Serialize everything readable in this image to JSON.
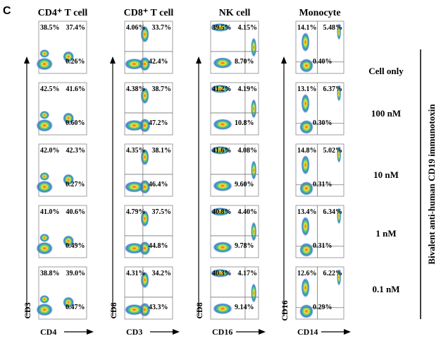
{
  "panel_label": "C",
  "side_label": "Bivalent anti-human CD19 immunotoxin",
  "conditions": [
    "Cell only",
    "100 nM",
    "10 nM",
    "1 nM",
    "0.1 nM"
  ],
  "columns": [
    {
      "title": "CD4⁺ T cell",
      "x_label": "CD4",
      "y_label": "CD3",
      "rows": [
        {
          "upper_left": "38.5%",
          "upper_right": "37.4%",
          "lower_right": "0.26%"
        },
        {
          "upper_left": "42.5%",
          "upper_right": "41.6%",
          "lower_right": "0.60%"
        },
        {
          "upper_left": "42.0%",
          "upper_right": "42.3%",
          "lower_right": "0.27%"
        },
        {
          "upper_left": "41.0%",
          "upper_right": "40.6%",
          "lower_right": "0.49%"
        },
        {
          "upper_left": "38.8%",
          "upper_right": "39.0%",
          "lower_right": "0.47%"
        }
      ]
    },
    {
      "title": "CD8⁺ T cell",
      "x_label": "CD3",
      "y_label": "CD8",
      "rows": [
        {
          "upper_left": "4.06%",
          "upper_right": "33.7%",
          "lower_right": "42.4%"
        },
        {
          "upper_left": "4.38%",
          "upper_right": "38.7%",
          "lower_right": "47.2%"
        },
        {
          "upper_left": "4.35%",
          "upper_right": "38.1%",
          "lower_right": "46.4%"
        },
        {
          "upper_left": "4.79%",
          "upper_right": "37.5%",
          "lower_right": "44.8%"
        },
        {
          "upper_left": "4.31%",
          "upper_right": "34.2%",
          "lower_right": "43.3%"
        }
      ]
    },
    {
      "title": "NK cell",
      "x_label": "CD16",
      "y_label": "CD8",
      "rows": [
        {
          "upper_left": "39.5%",
          "upper_right": "4.15%",
          "lower_right": "8.70%"
        },
        {
          "upper_left": "41.2%",
          "upper_right": "4.19%",
          "lower_right": "10.8%"
        },
        {
          "upper_left": "41.6%",
          "upper_right": "4.08%",
          "lower_right": "9.60%"
        },
        {
          "upper_left": "40.8%",
          "upper_right": "4.40%",
          "lower_right": "9.78%"
        },
        {
          "upper_left": "40.3%",
          "upper_right": "4.17%",
          "lower_right": "9.14%"
        }
      ]
    },
    {
      "title": "Monocyte",
      "x_label": "CD14",
      "y_label": "CD16",
      "rows": [
        {
          "upper_left": "14.1%",
          "upper_right": "5.48%",
          "lower_right": "0.40%"
        },
        {
          "upper_left": "13.1%",
          "upper_right": "6.37%",
          "lower_right": "0.30%"
        },
        {
          "upper_left": "14.8%",
          "upper_right": "5.02%",
          "lower_right": "0.31%"
        },
        {
          "upper_left": "13.4%",
          "upper_right": "6.34%",
          "lower_right": "0.31%"
        },
        {
          "upper_left": "12.6%",
          "upper_right": "6.22%",
          "lower_right": "0.29%"
        }
      ]
    }
  ]
}
